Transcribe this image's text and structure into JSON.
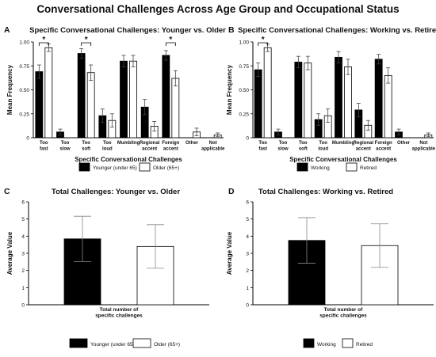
{
  "figure": {
    "title": "Conversational Challenges Across Age Group and Occupational Status"
  },
  "chart_data": [
    {
      "panel_letter": "A",
      "type": "bar",
      "title": "Specific Conversational Challenges: Younger vs. Older",
      "xlabel": "Specific Conversational Challenges",
      "ylabel": "Mean Frequency",
      "ylim": [
        0,
        1.0
      ],
      "yticks": [
        "0",
        "0.25",
        "0.50",
        "0.75",
        "1.00"
      ],
      "categories": [
        [
          "Too",
          "fast"
        ],
        [
          "Too",
          "slow"
        ],
        [
          "Too",
          "soft"
        ],
        [
          "Too",
          "loud"
        ],
        [
          "Mumbling"
        ],
        [
          "Regional",
          "accent"
        ],
        [
          "Foreign",
          "accent"
        ],
        [
          "Other"
        ],
        [
          "Not",
          "applicable"
        ]
      ],
      "series": [
        {
          "name": "Younger (under 65)",
          "color": "#000000",
          "values": [
            0.69,
            0.06,
            0.88,
            0.23,
            0.8,
            0.32,
            0.86,
            0.0,
            0.0
          ],
          "errors": [
            0.07,
            0.03,
            0.05,
            0.07,
            0.06,
            0.08,
            0.05,
            0.0,
            0.0
          ]
        },
        {
          "name": "Older (65+)",
          "color": "#ffffff",
          "values": [
            0.94,
            0.0,
            0.68,
            0.18,
            0.8,
            0.12,
            0.62,
            0.06,
            0.03
          ],
          "errors": [
            0.04,
            0.0,
            0.08,
            0.07,
            0.06,
            0.05,
            0.08,
            0.04,
            0.02
          ]
        }
      ],
      "significance": [
        {
          "category": 0,
          "label": "*"
        },
        {
          "category": 2,
          "label": "*"
        },
        {
          "category": 6,
          "label": "*"
        }
      ],
      "legend_position": "bottom"
    },
    {
      "panel_letter": "B",
      "type": "bar",
      "title": "Specific Conversational Challenges: Working vs. Retired",
      "xlabel": "Specific Conversational Challenges",
      "ylabel": "Mean Frequency",
      "ylim": [
        0,
        1.0
      ],
      "yticks": [
        "0",
        "0.25",
        "0.50",
        "0.75",
        "1.00"
      ],
      "categories": [
        [
          "Too",
          "fast"
        ],
        [
          "Too",
          "slow"
        ],
        [
          "Too",
          "soft"
        ],
        [
          "Too",
          "loud"
        ],
        [
          "Mumbling"
        ],
        [
          "Regional",
          "accent"
        ],
        [
          "Foreign",
          "accent"
        ],
        [
          "Other"
        ],
        [
          "Not",
          "applicable"
        ]
      ],
      "series": [
        {
          "name": "Working",
          "color": "#000000",
          "values": [
            0.71,
            0.06,
            0.79,
            0.19,
            0.84,
            0.29,
            0.82,
            0.06,
            0.0
          ],
          "errors": [
            0.07,
            0.03,
            0.06,
            0.06,
            0.06,
            0.07,
            0.05,
            0.03,
            0.0
          ]
        },
        {
          "name": "Retired",
          "color": "#ffffff",
          "values": [
            0.94,
            0.0,
            0.78,
            0.23,
            0.74,
            0.13,
            0.65,
            0.0,
            0.03
          ],
          "errors": [
            0.04,
            0.0,
            0.07,
            0.07,
            0.08,
            0.05,
            0.08,
            0.0,
            0.02
          ]
        }
      ],
      "significance": [
        {
          "category": 0,
          "label": "*"
        }
      ],
      "legend_position": "bottom"
    },
    {
      "panel_letter": "C",
      "type": "bar",
      "title": "Total Challenges: Younger vs. Older",
      "xlabel": "",
      "ylabel": "Average Value",
      "ylim": [
        0,
        6
      ],
      "yticks": [
        "0",
        "1",
        "2",
        "3",
        "4",
        "5",
        "6"
      ],
      "categories": [
        [
          "Total number of",
          "specific challenges"
        ]
      ],
      "series": [
        {
          "name": "Younger (under 65)",
          "color": "#000000",
          "values": [
            3.84
          ],
          "errors": [
            1.32
          ]
        },
        {
          "name": "Older (65+)",
          "color": "#ffffff",
          "values": [
            3.4
          ],
          "errors": [
            1.27
          ]
        }
      ],
      "significance": [],
      "legend_position": "bottom"
    },
    {
      "panel_letter": "D",
      "type": "bar",
      "title": "Total Challenges: Working vs. Retired",
      "xlabel": "",
      "ylabel": "Average Value",
      "ylim": [
        0,
        6
      ],
      "yticks": [
        "0",
        "1",
        "2",
        "3",
        "4",
        "5",
        "6"
      ],
      "categories": [
        [
          "Total number of",
          "specific challenges"
        ]
      ],
      "series": [
        {
          "name": "Working",
          "color": "#000000",
          "values": [
            3.75
          ],
          "errors": [
            1.33
          ]
        },
        {
          "name": "Retired",
          "color": "#ffffff",
          "values": [
            3.45
          ],
          "errors": [
            1.27
          ]
        }
      ],
      "significance": [],
      "legend_position": "bottom"
    }
  ]
}
